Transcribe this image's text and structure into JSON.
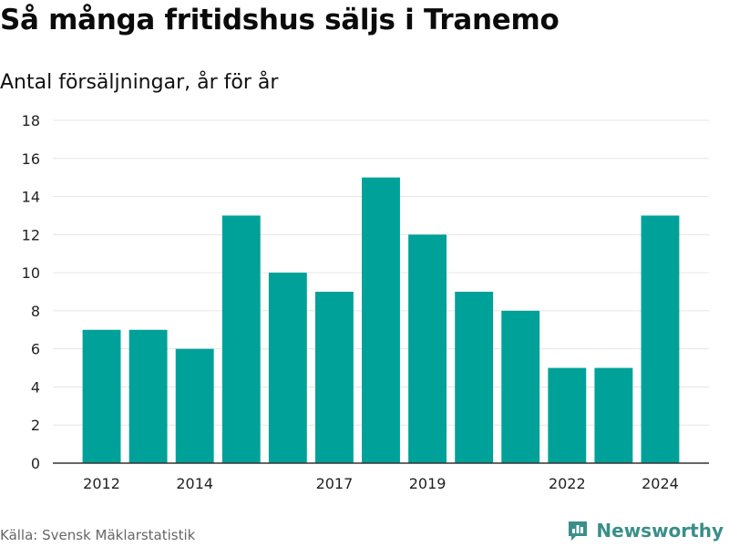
{
  "header": {
    "title": "Så många fritidshus säljs i Tranemo",
    "subtitle": "Antal försäljningar, år för år"
  },
  "footer": {
    "source": "Källa: Svensk Mäklarstatistik",
    "brand": "Newsworthy",
    "brand_icon": "bar-chart-speech-bubble-icon"
  },
  "colors": {
    "bar": "#00a198",
    "grid": "#e6e6e6",
    "axis": "#333333",
    "brand": "#3a8f8a"
  },
  "chart_data": {
    "type": "bar",
    "title": "Så många fritidshus säljs i Tranemo",
    "subtitle": "Antal försäljningar, år för år",
    "categories": [
      "2012",
      "2013",
      "2014",
      "2015",
      "2016",
      "2017",
      "2018",
      "2019",
      "2020",
      "2021",
      "2022",
      "2023",
      "2024"
    ],
    "values": [
      7,
      7,
      6,
      13,
      10,
      9,
      15,
      12,
      9,
      8,
      5,
      5,
      13
    ],
    "x_tick_labels": [
      "2012",
      "2014",
      "2017",
      "2019",
      "2022",
      "2024"
    ],
    "y_ticks": [
      0,
      2,
      4,
      6,
      8,
      10,
      12,
      14,
      16,
      18
    ],
    "ylim": [
      0,
      18
    ],
    "grid": true,
    "legend": "none"
  }
}
